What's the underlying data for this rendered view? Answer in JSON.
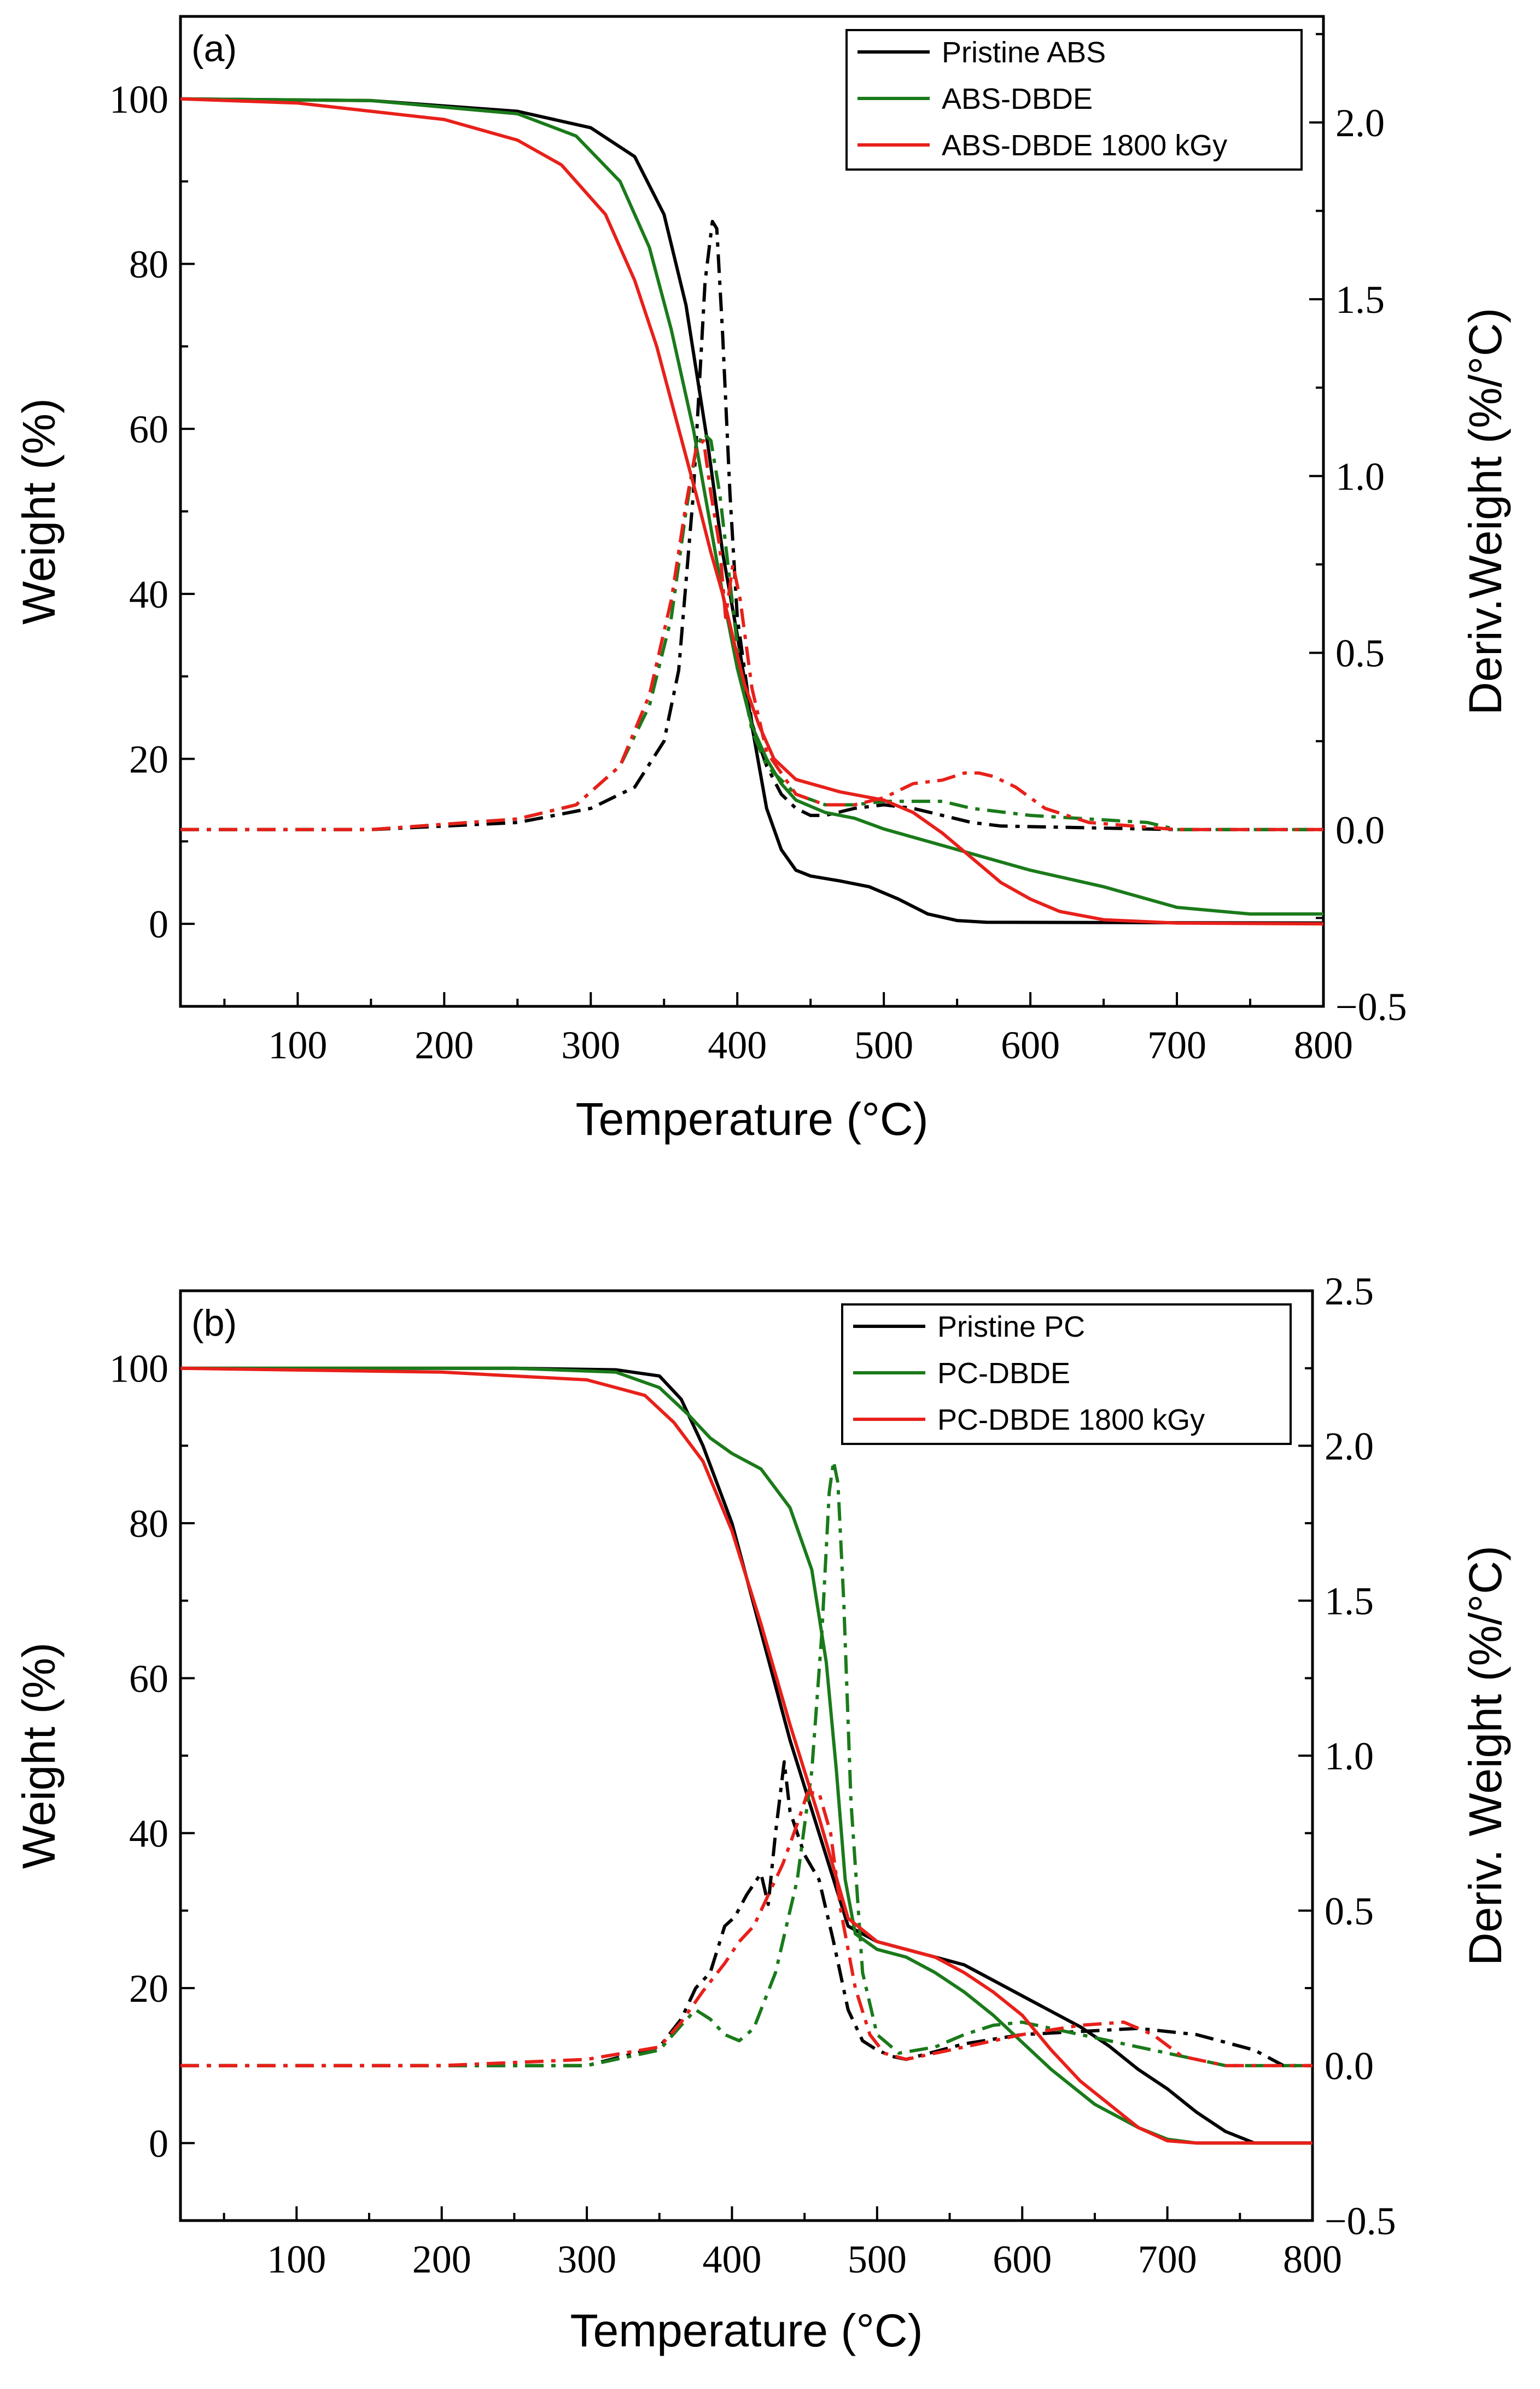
{
  "chart_data": [
    {
      "type": "line",
      "panel_label": "(a)",
      "xlabel": "Temperature (°C)",
      "ylabel": "Weight (%)",
      "y2label": "Deriv.Weight (%/°C)",
      "xlim": [
        20,
        800
      ],
      "ylim": [
        -10,
        110
      ],
      "y2lim": [
        -0.5,
        2.3
      ],
      "xticks": [
        "100",
        "200",
        "300",
        "400",
        "500",
        "600",
        "700",
        "800"
      ],
      "yticks": [
        "0",
        "20",
        "40",
        "60",
        "80",
        "100"
      ],
      "y2ticks": [
        "−0.5",
        "0.0",
        "0.5",
        "1.0",
        "1.5",
        "2.0"
      ],
      "legend_position": "top-right",
      "series": [
        {
          "name": "Pristine ABS",
          "color": "#000000",
          "weight": {
            "x": [
              20,
              150,
              250,
              300,
              330,
              350,
              365,
              380,
              390,
              400,
              410,
              420,
              430,
              440,
              450,
              470,
              490,
              510,
              530,
              550,
              570,
              800
            ],
            "y": [
              100,
              99.8,
              98.5,
              96.5,
              93,
              86,
              75,
              58,
              45,
              35,
              24,
              14,
              9,
              6.5,
              5.8,
              5.2,
              4.5,
              3,
              1.2,
              0.4,
              0.2,
              0.1
            ]
          },
          "deriv": {
            "x": [
              20,
              150,
              250,
              300,
              330,
              350,
              360,
              370,
              378,
              383,
              386,
              390,
              395,
              400,
              410,
              420,
              430,
              440,
              450,
              460,
              470,
              480,
              500,
              520,
              540,
              560,
              580,
              700,
              800
            ],
            "y": [
              0,
              0,
              0.02,
              0.06,
              0.12,
              0.25,
              0.45,
              0.95,
              1.55,
              1.72,
              1.7,
              1.4,
              0.95,
              0.6,
              0.3,
              0.18,
              0.1,
              0.06,
              0.04,
              0.04,
              0.05,
              0.06,
              0.07,
              0.06,
              0.04,
              0.02,
              0.01,
              0,
              0
            ]
          }
        },
        {
          "name": "ABS-DBDE",
          "color": "#1a7a1a",
          "weight": {
            "x": [
              20,
              150,
              250,
              290,
              320,
              340,
              355,
              370,
              380,
              390,
              400,
              410,
              420,
              430,
              440,
              460,
              480,
              500,
              550,
              600,
              650,
              700,
              750,
              800
            ],
            "y": [
              100,
              99.8,
              98.2,
              95.5,
              90,
              82,
              72,
              60,
              50,
              40,
              31,
              24,
              20,
              17,
              15,
              13.5,
              12.8,
              11.5,
              9,
              6.5,
              4.5,
              2,
              1.2,
              1.2
            ]
          },
          "deriv": {
            "x": [
              20,
              150,
              250,
              290,
              320,
              340,
              355,
              365,
              372,
              377,
              382,
              388,
              395,
              402,
              410,
              420,
              440,
              460,
              480,
              500,
              520,
              540,
              560,
              600,
              640,
              680,
              700,
              800
            ],
            "y": [
              0,
              0,
              0.03,
              0.07,
              0.18,
              0.35,
              0.6,
              0.9,
              1.08,
              1.12,
              1.1,
              0.95,
              0.7,
              0.45,
              0.28,
              0.18,
              0.1,
              0.07,
              0.07,
              0.08,
              0.08,
              0.08,
              0.06,
              0.04,
              0.03,
              0.02,
              0,
              0
            ]
          }
        },
        {
          "name": "ABS-DBDE 1800 kGy",
          "color": "#e8201a",
          "weight": {
            "x": [
              20,
              100,
              200,
              250,
              280,
              310,
              330,
              345,
              360,
              372,
              382,
              390,
              398,
              405,
              415,
              425,
              440,
              470,
              500,
              520,
              540,
              560,
              580,
              600,
              620,
              650,
              700,
              800
            ],
            "y": [
              100,
              99.5,
              97.5,
              95,
              92,
              86,
              78,
              70,
              60,
              52,
              45,
              40,
              34,
              29,
              24,
              20,
              17.5,
              16,
              15,
              13.5,
              11,
              8,
              5,
              3,
              1.5,
              0.5,
              0.1,
              0
            ]
          },
          "deriv": {
            "x": [
              20,
              150,
              250,
              290,
              320,
              340,
              355,
              365,
              372,
              377,
              382,
              388,
              392,
              397,
              402,
              410,
              420,
              440,
              460,
              480,
              500,
              520,
              540,
              555,
              565,
              575,
              590,
              610,
              640,
              700,
              800
            ],
            "y": [
              0,
              0,
              0.03,
              0.07,
              0.18,
              0.38,
              0.65,
              0.92,
              1.08,
              1.1,
              0.95,
              0.8,
              0.6,
              0.75,
              0.65,
              0.4,
              0.22,
              0.1,
              0.07,
              0.07,
              0.09,
              0.13,
              0.14,
              0.16,
              0.16,
              0.15,
              0.12,
              0.06,
              0.02,
              0,
              0
            ]
          }
        }
      ]
    },
    {
      "type": "line",
      "panel_label": "(b)",
      "xlabel": "Temperature (°C)",
      "ylabel": "Weight (%)",
      "y2label": "Deriv. Weight (%/°C)",
      "xlim": [
        20,
        800
      ],
      "ylim": [
        -10,
        110
      ],
      "y2lim": [
        -0.5,
        2.5
      ],
      "xticks": [
        "100",
        "200",
        "300",
        "400",
        "500",
        "600",
        "700",
        "800"
      ],
      "yticks": [
        "0",
        "20",
        "40",
        "60",
        "80",
        "100"
      ],
      "y2ticks": [
        "−0.5",
        "0.0",
        "0.5",
        "1.0",
        "1.5",
        "2.0",
        "2.5"
      ],
      "legend_position": "top-right",
      "series": [
        {
          "name": "Pristine PC",
          "color": "#000000",
          "weight": {
            "x": [
              20,
              250,
              320,
              350,
              365,
              380,
              400,
              420,
              440,
              460,
              480,
              500,
              520,
              540,
              560,
              580,
              600,
              620,
              640,
              660,
              680,
              700,
              720,
              740,
              760,
              800
            ],
            "y": [
              100,
              100,
              99.8,
              99,
              96,
              90,
              80,
              66,
              52,
              40,
              28,
              26,
              25,
              24,
              23,
              21,
              19,
              17,
              15,
              12.5,
              9.5,
              7,
              4,
              1.5,
              0,
              0
            ]
          },
          "deriv": {
            "x": [
              20,
              300,
              350,
              365,
              375,
              385,
              395,
              402,
              410,
              420,
              425,
              430,
              436,
              440,
              445,
              450,
              460,
              470,
              480,
              490,
              500,
              510,
              520,
              560,
              600,
              640,
              680,
              720,
              760,
              780,
              800
            ],
            "y": [
              0,
              0,
              0.06,
              0.15,
              0.25,
              0.3,
              0.45,
              0.48,
              0.55,
              0.62,
              0.52,
              0.75,
              0.98,
              0.82,
              0.75,
              0.68,
              0.6,
              0.4,
              0.18,
              0.08,
              0.05,
              0.03,
              0.02,
              0.07,
              0.1,
              0.11,
              0.12,
              0.1,
              0.05,
              0,
              0
            ]
          }
        },
        {
          "name": "PC-DBDE",
          "color": "#1a7a1a",
          "weight": {
            "x": [
              20,
              250,
              320,
              350,
              370,
              385,
              400,
              420,
              440,
              455,
              465,
              472,
              478,
              485,
              500,
              520,
              540,
              560,
              580,
              600,
              620,
              650,
              680,
              700,
              720,
              800
            ],
            "y": [
              100,
              100,
              99.5,
              97.5,
              94,
              91,
              89,
              87,
              82,
              74,
              62,
              48,
              34,
              27,
              25,
              24,
              22,
              19.5,
              16.5,
              13,
              9.5,
              5,
              2,
              0.5,
              0,
              0
            ]
          },
          "deriv": {
            "x": [
              20,
              300,
              350,
              365,
              375,
              385,
              395,
              405,
              415,
              430,
              445,
              455,
              462,
              467,
              470,
              473,
              477,
              482,
              490,
              500,
              515,
              540,
              560,
              580,
              600,
              620,
              660,
              700,
              740,
              800
            ],
            "y": [
              0,
              0,
              0.05,
              0.13,
              0.18,
              0.15,
              0.1,
              0.08,
              0.12,
              0.3,
              0.6,
              0.95,
              1.4,
              1.85,
              1.95,
              1.88,
              1.5,
              0.85,
              0.3,
              0.1,
              0.04,
              0.06,
              0.1,
              0.13,
              0.14,
              0.12,
              0.08,
              0.04,
              0,
              0
            ]
          }
        },
        {
          "name": "PC-DBDE 1800 kGy",
          "color": "#e8201a",
          "weight": {
            "x": [
              20,
              200,
              300,
              340,
              360,
              380,
              400,
              420,
              440,
              460,
              480,
              500,
              520,
              540,
              560,
              580,
              600,
              620,
              640,
              660,
              680,
              700,
              720,
              800
            ],
            "y": [
              100,
              99.5,
              98.5,
              96.5,
              93,
              88,
              79,
              67,
              54,
              42,
              29,
              26,
              25,
              24,
              22,
              19.5,
              16.5,
              12,
              8,
              5,
              2,
              0.3,
              0,
              0
            ]
          },
          "deriv": {
            "x": [
              20,
              200,
              300,
              350,
              365,
              380,
              395,
              405,
              415,
              425,
              435,
              445,
              452,
              460,
              468,
              475,
              485,
              495,
              505,
              520,
              560,
              600,
              640,
              670,
              690,
              710,
              740,
              800
            ],
            "y": [
              0,
              0,
              0.02,
              0.06,
              0.14,
              0.24,
              0.33,
              0.4,
              0.45,
              0.55,
              0.65,
              0.78,
              0.88,
              0.88,
              0.75,
              0.5,
              0.25,
              0.1,
              0.04,
              0.02,
              0.06,
              0.1,
              0.13,
              0.14,
              0.1,
              0.03,
              0,
              0
            ]
          }
        }
      ]
    }
  ]
}
